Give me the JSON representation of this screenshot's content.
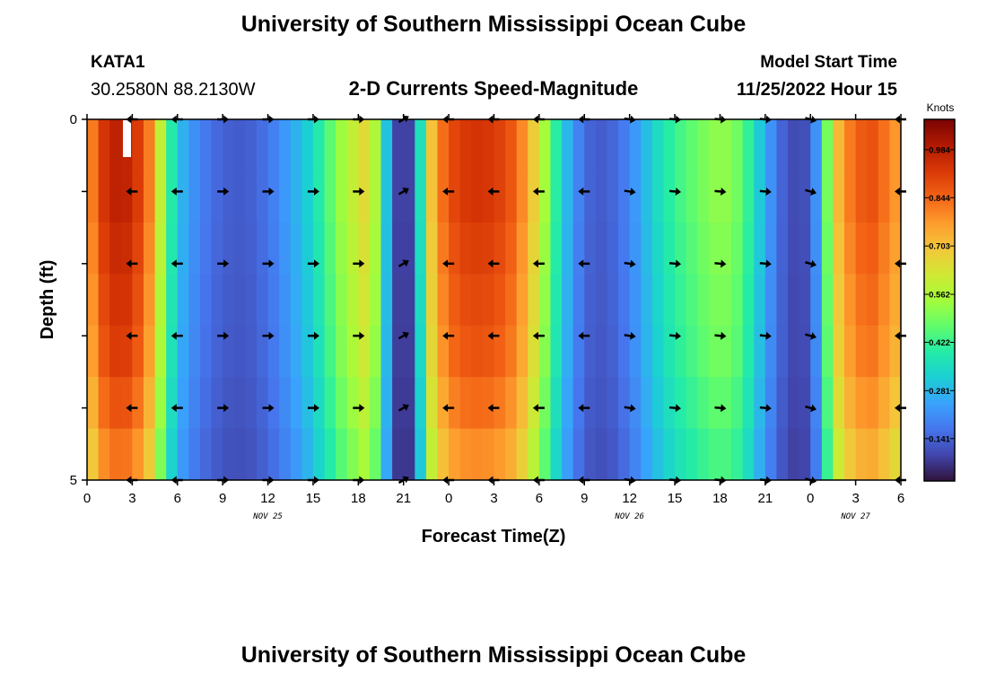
{
  "header": {
    "title": "University of Southern Mississippi Ocean Cube",
    "station": "KATA1",
    "coords": "30.2580N  88.2130W",
    "subtitle": "2-D Currents Speed-Magnitude",
    "model_label": "Model Start Time",
    "model_time": "11/25/2022 Hour 15"
  },
  "footer": {
    "title": "University of Southern Mississippi Ocean Cube"
  },
  "colorbar": {
    "label": "Knots",
    "tick_labels": [
      "0.984",
      "0.844",
      "0.703",
      "0.562",
      "0.422",
      "0.281",
      "0.141"
    ],
    "tick_values": [
      0.984,
      0.844,
      0.703,
      0.562,
      0.422,
      0.281,
      0.141
    ],
    "range": [
      0.02,
      1.07
    ],
    "colors": [
      "#30123b",
      "#4145ab",
      "#4675ed",
      "#39a2fc",
      "#1bcfd4",
      "#24eca6",
      "#61fc6c",
      "#a4fc3b",
      "#d1e834",
      "#f3c63a",
      "#fe9b2d",
      "#f36315",
      "#d93806",
      "#b11901",
      "#7a0402"
    ]
  },
  "chart_data": {
    "type": "heatmap",
    "xlabel": "Forecast Time(Z)",
    "ylabel": "Depth (ft)",
    "x_range_hours": [
      0,
      54
    ],
    "y_range": [
      0,
      5
    ],
    "x_ticks": [
      {
        "hour": 0,
        "label": "0"
      },
      {
        "hour": 3,
        "label": "3"
      },
      {
        "hour": 6,
        "label": "6"
      },
      {
        "hour": 9,
        "label": "9"
      },
      {
        "hour": 12,
        "label": "12"
      },
      {
        "hour": 15,
        "label": "15"
      },
      {
        "hour": 18,
        "label": "18"
      },
      {
        "hour": 21,
        "label": "21"
      },
      {
        "hour": 24,
        "label": "0"
      },
      {
        "hour": 27,
        "label": "3"
      },
      {
        "hour": 30,
        "label": "6"
      },
      {
        "hour": 33,
        "label": "9"
      },
      {
        "hour": 36,
        "label": "12"
      },
      {
        "hour": 39,
        "label": "15"
      },
      {
        "hour": 42,
        "label": "18"
      },
      {
        "hour": 45,
        "label": "21"
      },
      {
        "hour": 48,
        "label": "0"
      },
      {
        "hour": 51,
        "label": "3"
      },
      {
        "hour": 54,
        "label": "6"
      }
    ],
    "y_ticks": [
      {
        "depth": 0,
        "label": "0"
      },
      {
        "depth": 1,
        "label": ""
      },
      {
        "depth": 2,
        "label": ""
      },
      {
        "depth": 3,
        "label": ""
      },
      {
        "depth": 4,
        "label": ""
      },
      {
        "depth": 5,
        "label": "5"
      }
    ],
    "date_labels": [
      {
        "hour": 12,
        "label": "NOV 25"
      },
      {
        "hour": 36,
        "label": "NOV 26"
      },
      {
        "hour": 51,
        "label": "NOV 27"
      }
    ],
    "speed_profile": {
      "hours": [
        0,
        1,
        2,
        3,
        4,
        4.5,
        5,
        5.5,
        6,
        7,
        8,
        9,
        10,
        11,
        12,
        13,
        14,
        15,
        16,
        17,
        18,
        18.5,
        19,
        19.5,
        20,
        20.5,
        21,
        21.5,
        22,
        22.5,
        23,
        24,
        25,
        26,
        27,
        28,
        29,
        30,
        31,
        32,
        33,
        34,
        35,
        36,
        37,
        38,
        39,
        40,
        41,
        42,
        43,
        44,
        45,
        46,
        47,
        48,
        48.5,
        49,
        49.5,
        50,
        51,
        52,
        53,
        54
      ],
      "knots": [
        0.75,
        0.92,
        0.98,
        0.96,
        0.84,
        0.72,
        0.55,
        0.42,
        0.3,
        0.22,
        0.17,
        0.14,
        0.13,
        0.14,
        0.17,
        0.22,
        0.28,
        0.35,
        0.45,
        0.55,
        0.62,
        0.66,
        0.6,
        0.45,
        0.25,
        0.1,
        0.06,
        0.1,
        0.3,
        0.55,
        0.75,
        0.88,
        0.92,
        0.93,
        0.92,
        0.88,
        0.78,
        0.62,
        0.42,
        0.26,
        0.15,
        0.13,
        0.15,
        0.2,
        0.28,
        0.36,
        0.42,
        0.46,
        0.5,
        0.53,
        0.5,
        0.4,
        0.26,
        0.15,
        0.1,
        0.12,
        0.25,
        0.45,
        0.62,
        0.75,
        0.85,
        0.88,
        0.82,
        0.75
      ],
      "depth_factor": [
        1.0,
        1.0,
        0.98,
        0.96,
        0.94,
        0.9,
        0.85
      ]
    },
    "arrows": {
      "hours": [
        3,
        6,
        9,
        12,
        15,
        18,
        21,
        24,
        27,
        30,
        33,
        36,
        39,
        42,
        45,
        48,
        54
      ],
      "depths": [
        0,
        1,
        2,
        3,
        4,
        5
      ],
      "angles_deg": [
        180,
        180,
        0,
        0,
        0,
        0,
        30,
        180,
        180,
        180,
        180,
        -8,
        -5,
        -5,
        -5,
        -15,
        180
      ]
    }
  }
}
